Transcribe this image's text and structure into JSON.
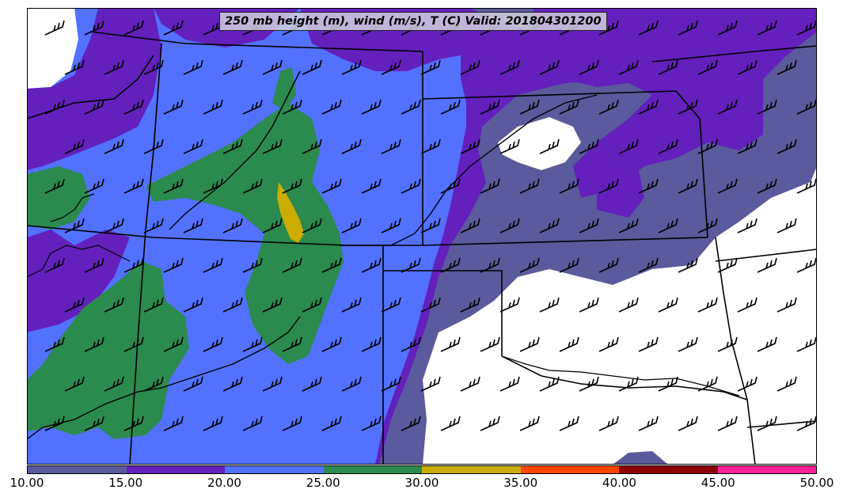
{
  "title": "250 mb height (m), wind (m/s), T (C) Valid: 201804301200",
  "legend": {
    "ticks": [
      "10.00",
      "15.00",
      "20.00",
      "25.00",
      "30.00",
      "35.00",
      "40.00",
      "45.00",
      "50.00"
    ],
    "colors": [
      "#5a5a9c",
      "#6320bd",
      "#5271ff",
      "#2b8a4e",
      "#ccac00",
      "#ff4500",
      "#8b0000",
      "#ff1f96"
    ]
  },
  "colors": {
    "background": "#ffffff",
    "border": "#000000",
    "boundary": "#000000",
    "barb": "#000000"
  },
  "map": {
    "region": "Central Plains, United States",
    "layers": [
      "wind-speed-fill",
      "state-boundaries",
      "wind-barbs"
    ]
  }
}
